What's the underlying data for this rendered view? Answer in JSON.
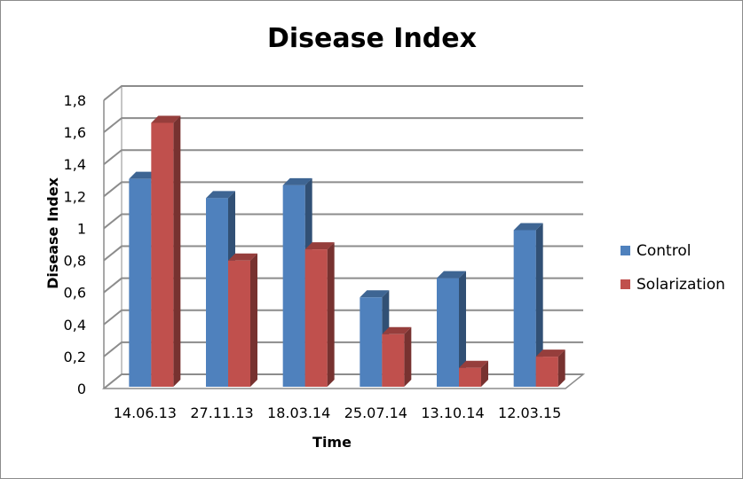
{
  "chart_data": {
    "type": "bar",
    "title": "Disease Index",
    "xlabel": "Time",
    "ylabel": "Disease Index",
    "categories": [
      "14.06.13",
      "27.11.13",
      "18.03.14",
      "25.07.14",
      "13.10.14",
      "12.03.15"
    ],
    "series": [
      {
        "name": "Control",
        "color": "#4f81bd",
        "values": [
          1.32,
          1.2,
          1.28,
          0.58,
          0.7,
          1.0
        ]
      },
      {
        "name": "Solarization",
        "color": "#c0504d",
        "values": [
          1.67,
          0.81,
          0.88,
          0.35,
          0.14,
          0.21
        ]
      }
    ],
    "ylim": [
      0,
      1.8
    ],
    "yticks": [
      "0",
      "0,2",
      "0,4",
      "0,6",
      "0,8",
      "1",
      "1,2",
      "1,4",
      "1,6",
      "1,8"
    ],
    "grid": true,
    "legend_position": "right",
    "style": "3d-clustered-column"
  }
}
